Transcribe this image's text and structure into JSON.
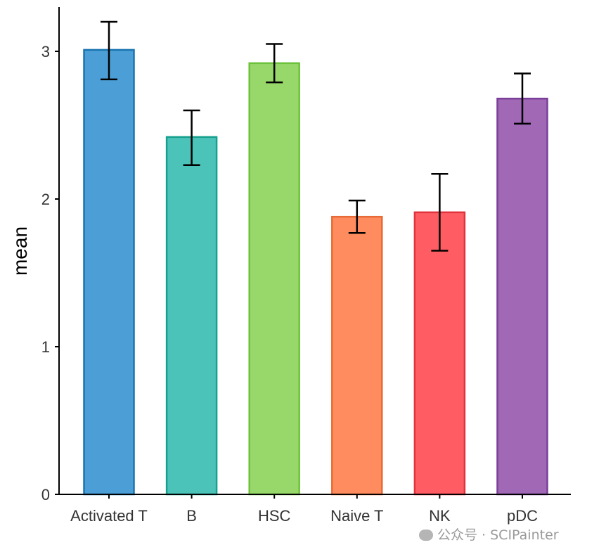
{
  "chart_data": {
    "type": "bar",
    "categories": [
      "Activated T",
      "B",
      "HSC",
      "Naive T",
      "NK",
      "pDC"
    ],
    "values": [
      3.01,
      2.42,
      2.92,
      1.88,
      1.91,
      2.68
    ],
    "error_bars": {
      "lower": [
        2.81,
        2.23,
        2.79,
        1.77,
        1.65,
        2.51
      ],
      "upper": [
        3.2,
        2.6,
        3.05,
        1.99,
        2.17,
        2.85
      ]
    },
    "colors": {
      "fill": [
        "#4C9FD6",
        "#4CC3B9",
        "#98D769",
        "#FF8C5E",
        "#FF5C63",
        "#A068B5"
      ],
      "stroke": [
        "#1A74B0",
        "#17A08F",
        "#6CC23C",
        "#E86A37",
        "#E0333D",
        "#7A3F98"
      ]
    },
    "title": "",
    "xlabel": "",
    "ylabel": "mean",
    "ylim": [
      0,
      3.3
    ],
    "yticks": [
      0,
      1,
      2,
      3
    ],
    "grid": false,
    "legend": "none"
  },
  "watermark": {
    "text": "公众号 · SCIPainter"
  }
}
